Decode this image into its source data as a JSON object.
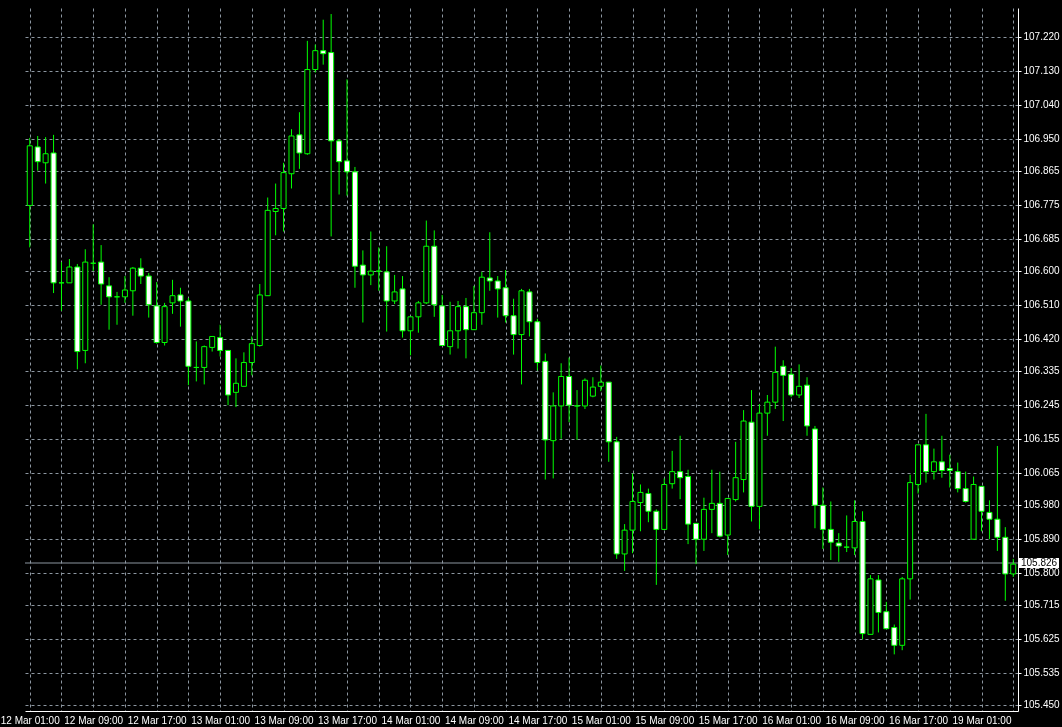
{
  "chart_data": {
    "type": "candlestick",
    "color": "#00ff00",
    "grid": true,
    "categories": [
      "12 Mar 01:00",
      null,
      null,
      null,
      null,
      null,
      null,
      null,
      "12 Mar 09:00",
      null,
      null,
      null,
      null,
      null,
      null,
      null,
      "12 Mar 17:00",
      null,
      null,
      null,
      null,
      null,
      null,
      null,
      "13 Mar 01:00",
      null,
      null,
      null,
      null,
      null,
      null,
      null,
      "13 Mar 09:00",
      null,
      null,
      null,
      null,
      null,
      null,
      null,
      "13 Mar 17:00",
      null,
      null,
      null,
      null,
      null,
      null,
      null,
      "14 Mar 01:00",
      null,
      null,
      null,
      null,
      null,
      null,
      null,
      "14 Mar 09:00",
      null,
      null,
      null,
      null,
      null,
      null,
      null,
      "14 Mar 17:00",
      null,
      null,
      null,
      null,
      null,
      null,
      null,
      "15 Mar 01:00",
      null,
      null,
      null,
      null,
      null,
      null,
      null,
      "15 Mar 09:00",
      null,
      null,
      null,
      null,
      null,
      null,
      null,
      "15 Mar 17:00",
      null,
      null,
      null,
      null,
      null,
      null,
      null,
      "16 Mar 01:00",
      null,
      null,
      null,
      null,
      null,
      null,
      null,
      "16 Mar 09:00",
      null,
      null,
      null,
      null,
      null,
      null,
      null,
      "16 Mar 17:00",
      null,
      null,
      null,
      null,
      null,
      null,
      null,
      "19 Mar 01:00",
      null,
      null,
      null,
      null
    ],
    "ohlc": [
      [
        106.773,
        106.952,
        106.662,
        106.931
      ],
      [
        106.928,
        106.957,
        106.865,
        106.889
      ],
      [
        106.886,
        106.954,
        106.831,
        106.91
      ],
      [
        106.912,
        106.96,
        106.541,
        106.568
      ],
      [
        106.568,
        106.623,
        106.494,
        106.568
      ],
      [
        106.568,
        106.631,
        106.568,
        106.61
      ],
      [
        106.61,
        106.618,
        106.339,
        106.386
      ],
      [
        106.389,
        106.657,
        106.355,
        106.623
      ],
      [
        106.62,
        106.723,
        106.599,
        106.62
      ],
      [
        106.623,
        106.668,
        106.51,
        106.565
      ],
      [
        106.56,
        106.583,
        106.444,
        106.531
      ],
      [
        106.531,
        106.544,
        106.457,
        106.531
      ],
      [
        106.531,
        106.586,
        106.515,
        106.549
      ],
      [
        106.547,
        106.61,
        106.481,
        106.607
      ],
      [
        106.607,
        106.633,
        106.565,
        106.586
      ],
      [
        106.586,
        106.594,
        106.476,
        106.51
      ],
      [
        106.507,
        106.57,
        106.407,
        106.41
      ],
      [
        106.41,
        106.515,
        106.402,
        106.505
      ],
      [
        106.515,
        106.576,
        106.486,
        106.534
      ],
      [
        106.536,
        106.555,
        106.452,
        106.52
      ],
      [
        106.52,
        106.528,
        106.297,
        106.347
      ],
      [
        106.344,
        106.413,
        106.307,
        106.344
      ],
      [
        106.344,
        106.402,
        106.299,
        106.399
      ],
      [
        106.397,
        106.426,
        106.386,
        106.426
      ],
      [
        106.423,
        106.457,
        106.373,
        106.389
      ],
      [
        106.389,
        106.389,
        106.244,
        106.271
      ],
      [
        106.278,
        106.368,
        106.239,
        106.302
      ],
      [
        106.294,
        106.384,
        106.294,
        106.357
      ],
      [
        106.357,
        106.426,
        106.323,
        106.407
      ],
      [
        106.402,
        106.565,
        106.399,
        106.536
      ],
      [
        106.534,
        106.794,
        106.534,
        106.76
      ],
      [
        106.757,
        106.831,
        106.694,
        106.765
      ],
      [
        106.765,
        106.886,
        106.704,
        106.86
      ],
      [
        106.857,
        106.975,
        106.818,
        106.957
      ],
      [
        106.96,
        107.02,
        106.87,
        106.912
      ],
      [
        106.91,
        107.209,
        106.907,
        107.133
      ],
      [
        107.133,
        107.199,
        107.125,
        107.183
      ],
      [
        107.183,
        107.265,
        107.146,
        107.175
      ],
      [
        107.178,
        107.28,
        106.691,
        106.944
      ],
      [
        106.944,
        106.949,
        106.802,
        106.889
      ],
      [
        106.891,
        107.107,
        106.799,
        106.862
      ],
      [
        106.862,
        106.875,
        106.555,
        106.612
      ],
      [
        106.615,
        106.654,
        106.463,
        106.589
      ],
      [
        106.589,
        106.704,
        106.562,
        106.599
      ],
      [
        106.599,
        106.662,
        106.547,
        106.599
      ],
      [
        106.597,
        106.665,
        106.439,
        106.52
      ],
      [
        106.52,
        106.589,
        106.512,
        106.544
      ],
      [
        106.552,
        106.586,
        106.423,
        106.441
      ],
      [
        106.441,
        106.478,
        106.376,
        106.478
      ],
      [
        106.478,
        106.52,
        106.436,
        106.515
      ],
      [
        106.515,
        106.733,
        106.512,
        106.665
      ],
      [
        106.665,
        106.707,
        106.478,
        106.51
      ],
      [
        106.507,
        106.536,
        106.402,
        106.402
      ],
      [
        106.399,
        106.518,
        106.378,
        106.441
      ],
      [
        106.441,
        106.52,
        106.394,
        106.505
      ],
      [
        106.505,
        106.528,
        106.368,
        106.444
      ],
      [
        106.444,
        106.56,
        106.444,
        106.489
      ],
      [
        106.489,
        106.597,
        106.457,
        106.583
      ],
      [
        106.581,
        106.702,
        106.547,
        106.573
      ],
      [
        106.573,
        106.586,
        106.476,
        106.552
      ],
      [
        106.555,
        106.602,
        106.463,
        106.481
      ],
      [
        106.481,
        106.526,
        106.378,
        106.431
      ],
      [
        106.431,
        106.552,
        106.299,
        106.547
      ],
      [
        106.544,
        106.552,
        106.426,
        106.465
      ],
      [
        106.465,
        106.473,
        106.336,
        106.357
      ],
      [
        106.36,
        106.381,
        106.047,
        106.152
      ],
      [
        106.15,
        106.278,
        106.05,
        106.242
      ],
      [
        106.242,
        106.355,
        106.155,
        106.32
      ],
      [
        106.32,
        106.37,
        106.199,
        106.244
      ],
      [
        106.242,
        106.284,
        106.152,
        106.242
      ],
      [
        106.242,
        106.315,
        106.234,
        106.31
      ],
      [
        106.268,
        106.318,
        106.265,
        106.292
      ],
      [
        106.294,
        106.349,
        106.281,
        106.305
      ],
      [
        106.305,
        106.305,
        106.094,
        106.147
      ],
      [
        106.147,
        106.16,
        105.837,
        105.85
      ],
      [
        105.85,
        105.929,
        105.805,
        105.913
      ],
      [
        105.913,
        106.063,
        105.852,
        105.989
      ],
      [
        105.986,
        106.034,
        105.91,
        106.013
      ],
      [
        106.01,
        106.023,
        105.934,
        105.963
      ],
      [
        105.963,
        105.968,
        105.768,
        105.915
      ],
      [
        105.915,
        106.05,
        105.913,
        106.034
      ],
      [
        106.036,
        106.123,
        106.023,
        106.068
      ],
      [
        106.068,
        106.163,
        105.995,
        106.052
      ],
      [
        106.055,
        106.073,
        105.876,
        105.929
      ],
      [
        105.931,
        105.931,
        105.823,
        105.889
      ],
      [
        105.889,
        105.999,
        105.858,
        105.968
      ],
      [
        105.968,
        106.073,
        105.905,
        105.984
      ],
      [
        105.984,
        106.068,
        105.894,
        105.897
      ],
      [
        105.9,
        105.997,
        105.847,
        105.997
      ],
      [
        105.994,
        106.147,
        105.989,
        106.052
      ],
      [
        106.047,
        106.231,
        106.013,
        106.202
      ],
      [
        106.199,
        106.284,
        105.936,
        105.976
      ],
      [
        105.976,
        106.247,
        105.915,
        106.223
      ],
      [
        106.223,
        106.271,
        106.163,
        106.252
      ],
      [
        106.252,
        106.399,
        106.234,
        106.331
      ],
      [
        106.347,
        106.363,
        106.202,
        106.323
      ],
      [
        106.326,
        106.342,
        106.265,
        106.271
      ],
      [
        106.271,
        106.352,
        106.263,
        106.294
      ],
      [
        106.297,
        106.318,
        106.163,
        106.189
      ],
      [
        106.181,
        106.189,
        105.918,
        105.979
      ],
      [
        105.979,
        106.026,
        105.863,
        105.915
      ],
      [
        105.915,
        105.989,
        105.834,
        105.881
      ],
      [
        105.879,
        105.905,
        105.829,
        105.871
      ],
      [
        105.868,
        105.952,
        105.855,
        105.868
      ],
      [
        105.866,
        105.992,
        105.847,
        105.936
      ],
      [
        105.936,
        105.963,
        105.624,
        105.639
      ],
      [
        105.637,
        105.794,
        105.637,
        105.784
      ],
      [
        105.781,
        105.794,
        105.642,
        105.695
      ],
      [
        105.697,
        105.723,
        105.652,
        105.652
      ],
      [
        105.655,
        105.663,
        105.584,
        105.608
      ],
      [
        105.608,
        105.789,
        105.595,
        105.784
      ],
      [
        105.784,
        106.06,
        105.729,
        106.039
      ],
      [
        106.034,
        106.139,
        106.01,
        106.139
      ],
      [
        106.139,
        106.221,
        106.039,
        106.068
      ],
      [
        106.068,
        106.129,
        106.047,
        106.094
      ],
      [
        106.094,
        106.163,
        106.052,
        106.071
      ],
      [
        106.076,
        106.113,
        106.026,
        106.071
      ],
      [
        106.068,
        106.092,
        106.013,
        106.023
      ],
      [
        106.023,
        106.068,
        105.986,
        105.989
      ],
      [
        105.889,
        106.055,
        105.889,
        106.034
      ],
      [
        106.029,
        106.029,
        105.91,
        105.963
      ],
      [
        105.96,
        105.992,
        105.889,
        105.942
      ],
      [
        105.942,
        106.136,
        105.858,
        105.894
      ],
      [
        105.894,
        105.921,
        105.726,
        105.797
      ],
      [
        105.797,
        105.837,
        105.789,
        105.823
      ]
    ],
    "ylim": [
      105.434,
      107.296
    ],
    "yticks": [
      {
        "value": 105.45,
        "label": "105.450"
      },
      {
        "value": 105.535,
        "label": "105.535"
      },
      {
        "value": 105.625,
        "label": "105.625"
      },
      {
        "value": 105.715,
        "label": "105.715"
      },
      {
        "value": 105.8,
        "label": "105.800"
      },
      {
        "value": 105.89,
        "label": "105.890"
      },
      {
        "value": 105.98,
        "label": "105.980"
      },
      {
        "value": 106.065,
        "label": "106.065"
      },
      {
        "value": 106.155,
        "label": "106.155"
      },
      {
        "value": 106.245,
        "label": "106.245"
      },
      {
        "value": 106.335,
        "label": "106.335"
      },
      {
        "value": 106.42,
        "label": "106.420"
      },
      {
        "value": 106.51,
        "label": "106.510"
      },
      {
        "value": 106.6,
        "label": "106.600"
      },
      {
        "value": 106.685,
        "label": "106.685"
      },
      {
        "value": 106.775,
        "label": "106.775"
      },
      {
        "value": 106.865,
        "label": "106.865"
      },
      {
        "value": 106.95,
        "label": "106.950"
      },
      {
        "value": 107.04,
        "label": "107.040"
      },
      {
        "value": 107.13,
        "label": "107.130"
      },
      {
        "value": 107.22,
        "label": "107.220"
      }
    ],
    "ref_lines": [
      {
        "axis": "y",
        "value": 105.826,
        "label": "105.826",
        "color": "#8c96a0"
      }
    ]
  }
}
